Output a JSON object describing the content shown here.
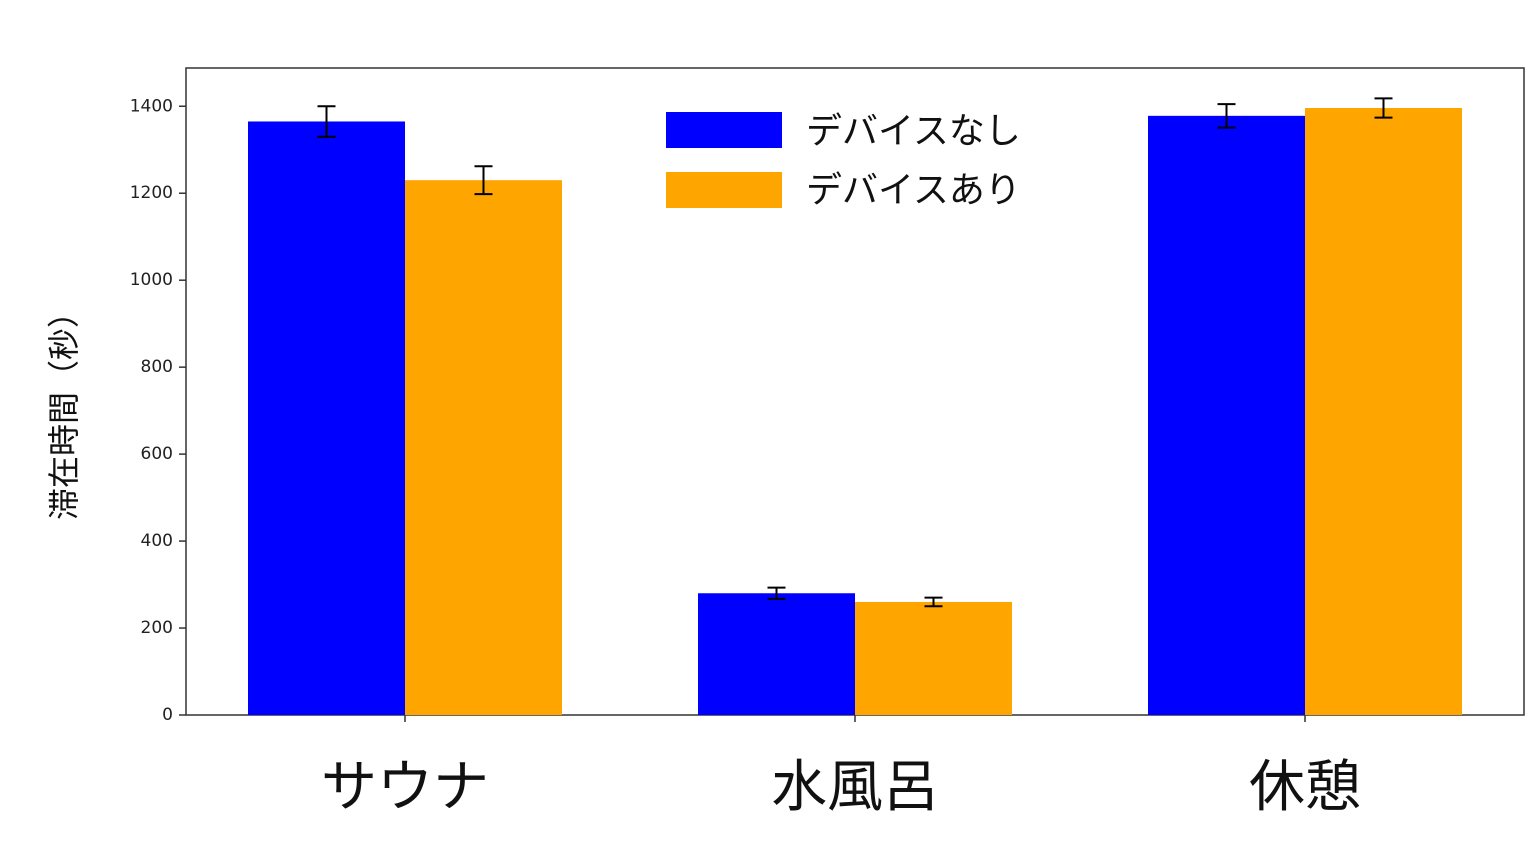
{
  "chart_data": {
    "type": "bar",
    "categories": [
      "サウナ",
      "水風呂",
      "休憩"
    ],
    "series": [
      {
        "name": "デバイスなし",
        "color": "#0000ff",
        "values": [
          1365,
          280,
          1378
        ],
        "errors": [
          35,
          13,
          27
        ]
      },
      {
        "name": "デバイスあり",
        "color": "#ffa500",
        "values": [
          1230,
          260,
          1396
        ],
        "errors": [
          32,
          10,
          22
        ]
      }
    ],
    "title": "",
    "xlabel": "",
    "ylabel": "滞在時間（秒）",
    "ylim": [
      0,
      1488
    ],
    "yticks": [
      0,
      200,
      400,
      600,
      800,
      1000,
      1200,
      1400
    ],
    "grid": false,
    "legend_position": "top-center"
  }
}
